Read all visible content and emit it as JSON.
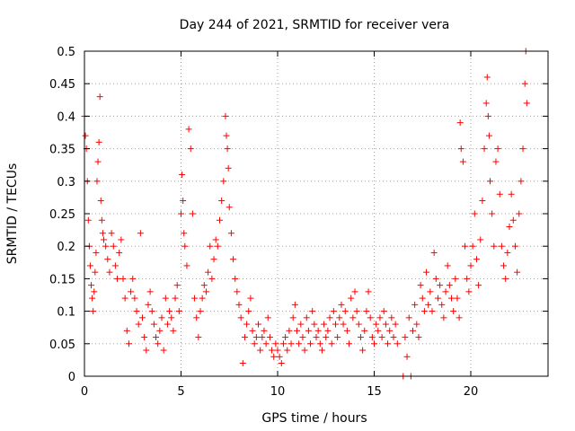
{
  "chart_data": {
    "type": "scatter",
    "title": "Day 244 of 2021, SRMTID for receiver vera",
    "xlabel": "GPS time / hours",
    "ylabel": "SRMTID / TECUs",
    "xlim": [
      0,
      24
    ],
    "ylim": [
      0,
      0.5
    ],
    "xticks": [
      0,
      5,
      10,
      15,
      20
    ],
    "xtick_labels": [
      "0",
      "5",
      "10",
      "15",
      "20"
    ],
    "yticks": [
      0,
      0.05,
      0.1,
      0.15,
      0.2,
      0.25,
      0.3,
      0.35,
      0.4,
      0.45,
      0.5
    ],
    "ytick_labels": [
      "0",
      "0.05",
      "0.1",
      "0.15",
      "0.2",
      "0.25",
      "0.3",
      "0.35",
      "0.4",
      "0.45",
      "0.5"
    ],
    "grid": true,
    "marker": "+",
    "marker_color": "#ff0000",
    "series": [
      {
        "name": "SRMTID",
        "color": "#ff0000",
        "points": [
          [
            0.0,
            0.4
          ],
          [
            0.05,
            0.37
          ],
          [
            0.1,
            0.35
          ],
          [
            0.15,
            0.3
          ],
          [
            0.2,
            0.24
          ],
          [
            0.25,
            0.2
          ],
          [
            0.3,
            0.17
          ],
          [
            0.35,
            0.14
          ],
          [
            0.4,
            0.12
          ],
          [
            0.45,
            0.1
          ],
          [
            0.5,
            0.13
          ],
          [
            0.55,
            0.16
          ],
          [
            0.6,
            0.19
          ],
          [
            0.65,
            0.3
          ],
          [
            0.7,
            0.33
          ],
          [
            0.75,
            0.36
          ],
          [
            0.8,
            0.43
          ],
          [
            0.85,
            0.27
          ],
          [
            0.9,
            0.24
          ],
          [
            0.95,
            0.22
          ],
          [
            1.0,
            0.21
          ],
          [
            1.1,
            0.2
          ],
          [
            1.2,
            0.18
          ],
          [
            1.3,
            0.16
          ],
          [
            1.4,
            0.22
          ],
          [
            1.5,
            0.2
          ],
          [
            1.6,
            0.17
          ],
          [
            1.7,
            0.15
          ],
          [
            1.8,
            0.19
          ],
          [
            1.9,
            0.21
          ],
          [
            2.0,
            0.15
          ],
          [
            2.1,
            0.12
          ],
          [
            2.2,
            0.07
          ],
          [
            2.3,
            0.05
          ],
          [
            2.4,
            0.13
          ],
          [
            2.5,
            0.15
          ],
          [
            2.6,
            0.12
          ],
          [
            2.7,
            0.1
          ],
          [
            2.8,
            0.08
          ],
          [
            2.9,
            0.22
          ],
          [
            3.0,
            0.09
          ],
          [
            3.1,
            0.06
          ],
          [
            3.2,
            0.04
          ],
          [
            3.3,
            0.11
          ],
          [
            3.4,
            0.13
          ],
          [
            3.5,
            0.1
          ],
          [
            3.6,
            0.08
          ],
          [
            3.7,
            0.06
          ],
          [
            3.8,
            0.05
          ],
          [
            3.9,
            0.07
          ],
          [
            4.0,
            0.09
          ],
          [
            4.1,
            0.04
          ],
          [
            4.2,
            0.12
          ],
          [
            4.3,
            0.08
          ],
          [
            4.4,
            0.1
          ],
          [
            4.5,
            0.09
          ],
          [
            4.6,
            0.07
          ],
          [
            4.7,
            0.12
          ],
          [
            4.8,
            0.14
          ],
          [
            4.9,
            0.1
          ],
          [
            5.0,
            0.25
          ],
          [
            5.05,
            0.31
          ],
          [
            5.1,
            0.27
          ],
          [
            5.15,
            0.22
          ],
          [
            5.2,
            0.2
          ],
          [
            5.3,
            0.17
          ],
          [
            5.4,
            0.38
          ],
          [
            5.5,
            0.35
          ],
          [
            5.6,
            0.25
          ],
          [
            5.7,
            0.12
          ],
          [
            5.8,
            0.09
          ],
          [
            5.9,
            0.06
          ],
          [
            6.0,
            0.1
          ],
          [
            6.1,
            0.12
          ],
          [
            6.2,
            0.14
          ],
          [
            6.3,
            0.13
          ],
          [
            6.4,
            0.16
          ],
          [
            6.5,
            0.2
          ],
          [
            6.6,
            0.15
          ],
          [
            6.7,
            0.18
          ],
          [
            6.8,
            0.21
          ],
          [
            6.9,
            0.2
          ],
          [
            7.0,
            0.24
          ],
          [
            7.1,
            0.27
          ],
          [
            7.2,
            0.3
          ],
          [
            7.3,
            0.4
          ],
          [
            7.35,
            0.37
          ],
          [
            7.4,
            0.35
          ],
          [
            7.45,
            0.32
          ],
          [
            7.5,
            0.26
          ],
          [
            7.6,
            0.22
          ],
          [
            7.7,
            0.18
          ],
          [
            7.8,
            0.15
          ],
          [
            7.9,
            0.13
          ],
          [
            8.0,
            0.11
          ],
          [
            8.1,
            0.09
          ],
          [
            8.2,
            0.02
          ],
          [
            8.3,
            0.06
          ],
          [
            8.4,
            0.08
          ],
          [
            8.5,
            0.1
          ],
          [
            8.6,
            0.12
          ],
          [
            8.7,
            0.07
          ],
          [
            8.8,
            0.05
          ],
          [
            8.9,
            0.06
          ],
          [
            9.0,
            0.08
          ],
          [
            9.1,
            0.04
          ],
          [
            9.2,
            0.06
          ],
          [
            9.3,
            0.07
          ],
          [
            9.4,
            0.05
          ],
          [
            9.5,
            0.09
          ],
          [
            9.6,
            0.06
          ],
          [
            9.7,
            0.04
          ],
          [
            9.8,
            0.03
          ],
          [
            9.9,
            0.05
          ],
          [
            10.0,
            0.04
          ],
          [
            10.1,
            0.03
          ],
          [
            10.2,
            0.02
          ],
          [
            10.3,
            0.05
          ],
          [
            10.4,
            0.06
          ],
          [
            10.5,
            0.04
          ],
          [
            10.6,
            0.07
          ],
          [
            10.7,
            0.05
          ],
          [
            10.8,
            0.09
          ],
          [
            10.9,
            0.11
          ],
          [
            11.0,
            0.07
          ],
          [
            11.1,
            0.05
          ],
          [
            11.2,
            0.08
          ],
          [
            11.3,
            0.06
          ],
          [
            11.4,
            0.04
          ],
          [
            11.5,
            0.09
          ],
          [
            11.6,
            0.07
          ],
          [
            11.7,
            0.05
          ],
          [
            11.8,
            0.1
          ],
          [
            11.9,
            0.08
          ],
          [
            12.0,
            0.06
          ],
          [
            12.1,
            0.07
          ],
          [
            12.2,
            0.05
          ],
          [
            12.3,
            0.04
          ],
          [
            12.4,
            0.08
          ],
          [
            12.5,
            0.06
          ],
          [
            12.6,
            0.07
          ],
          [
            12.7,
            0.09
          ],
          [
            12.8,
            0.05
          ],
          [
            12.9,
            0.1
          ],
          [
            13.0,
            0.08
          ],
          [
            13.1,
            0.06
          ],
          [
            13.2,
            0.09
          ],
          [
            13.3,
            0.11
          ],
          [
            13.4,
            0.08
          ],
          [
            13.5,
            0.1
          ],
          [
            13.6,
            0.07
          ],
          [
            13.7,
            0.05
          ],
          [
            13.8,
            0.12
          ],
          [
            13.9,
            0.09
          ],
          [
            14.0,
            0.13
          ],
          [
            14.1,
            0.1
          ],
          [
            14.2,
            0.08
          ],
          [
            14.3,
            0.06
          ],
          [
            14.4,
            0.04
          ],
          [
            14.5,
            0.07
          ],
          [
            14.6,
            0.1
          ],
          [
            14.7,
            0.13
          ],
          [
            14.8,
            0.09
          ],
          [
            14.9,
            0.06
          ],
          [
            15.0,
            0.05
          ],
          [
            15.1,
            0.08
          ],
          [
            15.2,
            0.07
          ],
          [
            15.3,
            0.09
          ],
          [
            15.4,
            0.06
          ],
          [
            15.5,
            0.1
          ],
          [
            15.6,
            0.08
          ],
          [
            15.7,
            0.05
          ],
          [
            15.8,
            0.07
          ],
          [
            15.9,
            0.09
          ],
          [
            16.0,
            0.06
          ],
          [
            16.1,
            0.08
          ],
          [
            16.2,
            0.05
          ],
          [
            16.5,
            0.0
          ],
          [
            16.6,
            0.06
          ],
          [
            16.7,
            0.03
          ],
          [
            16.8,
            0.09
          ],
          [
            16.9,
            0.0
          ],
          [
            17.0,
            0.07
          ],
          [
            17.1,
            0.11
          ],
          [
            17.2,
            0.08
          ],
          [
            17.3,
            0.06
          ],
          [
            17.4,
            0.14
          ],
          [
            17.5,
            0.12
          ],
          [
            17.6,
            0.1
          ],
          [
            17.7,
            0.16
          ],
          [
            17.8,
            0.11
          ],
          [
            17.9,
            0.13
          ],
          [
            18.0,
            0.1
          ],
          [
            18.1,
            0.19
          ],
          [
            18.2,
            0.15
          ],
          [
            18.3,
            0.12
          ],
          [
            18.4,
            0.14
          ],
          [
            18.5,
            0.11
          ],
          [
            18.6,
            0.09
          ],
          [
            18.7,
            0.13
          ],
          [
            18.8,
            0.17
          ],
          [
            18.9,
            0.14
          ],
          [
            19.0,
            0.12
          ],
          [
            19.1,
            0.1
          ],
          [
            19.2,
            0.15
          ],
          [
            19.3,
            0.12
          ],
          [
            19.4,
            0.09
          ],
          [
            19.45,
            0.39
          ],
          [
            19.5,
            0.35
          ],
          [
            19.6,
            0.33
          ],
          [
            19.7,
            0.2
          ],
          [
            19.8,
            0.15
          ],
          [
            19.9,
            0.13
          ],
          [
            20.0,
            0.17
          ],
          [
            20.1,
            0.2
          ],
          [
            20.2,
            0.25
          ],
          [
            20.3,
            0.18
          ],
          [
            20.4,
            0.14
          ],
          [
            20.5,
            0.21
          ],
          [
            20.6,
            0.27
          ],
          [
            20.7,
            0.35
          ],
          [
            20.8,
            0.42
          ],
          [
            20.85,
            0.46
          ],
          [
            20.9,
            0.4
          ],
          [
            20.95,
            0.37
          ],
          [
            21.0,
            0.3
          ],
          [
            21.1,
            0.25
          ],
          [
            21.2,
            0.2
          ],
          [
            21.3,
            0.33
          ],
          [
            21.4,
            0.35
          ],
          [
            21.5,
            0.28
          ],
          [
            21.6,
            0.2
          ],
          [
            21.7,
            0.17
          ],
          [
            21.8,
            0.15
          ],
          [
            21.9,
            0.19
          ],
          [
            22.0,
            0.23
          ],
          [
            22.1,
            0.28
          ],
          [
            22.2,
            0.24
          ],
          [
            22.3,
            0.2
          ],
          [
            22.4,
            0.16
          ],
          [
            22.5,
            0.25
          ],
          [
            22.6,
            0.3
          ],
          [
            22.7,
            0.35
          ],
          [
            22.8,
            0.45
          ],
          [
            22.85,
            0.5
          ],
          [
            22.9,
            0.42
          ]
        ]
      }
    ]
  }
}
